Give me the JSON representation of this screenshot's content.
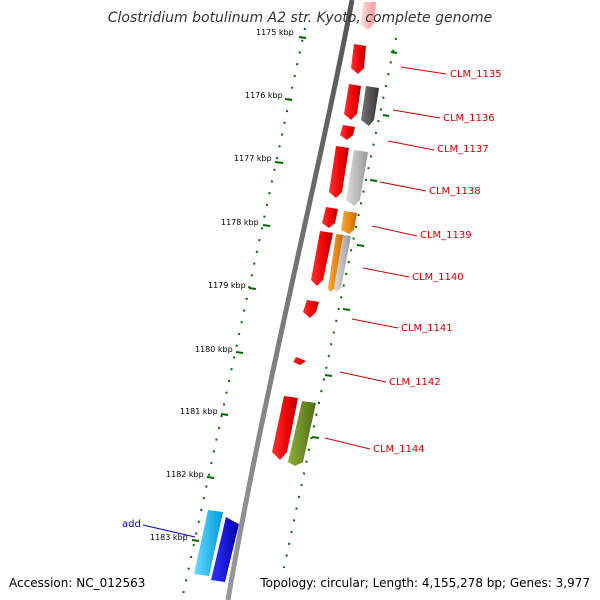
{
  "title": "Clostridium botulinum A2 str. Kyoto, complete genome",
  "accession": "Accession: NC_012563",
  "topology": "Topology: circular; Length: 4,155,278 bp; Genes: 3,977",
  "ruler": {
    "unit": "kbp",
    "ticks": [
      "1175 kbp",
      "1176 kbp",
      "1177 kbp",
      "1178 kbp",
      "1179 kbp",
      "1180 kbp",
      "1181 kbp",
      "1182 kbp",
      "1183 kbp"
    ]
  },
  "genes": [
    {
      "name": "",
      "strand": "forward",
      "color": "#ff0000"
    },
    {
      "name": "CLM_1135",
      "strand": "forward",
      "color": "#ff0000"
    },
    {
      "name": "CLM_1136",
      "strand": "forward",
      "color": "#ff0000",
      "homolog_color": "#555555"
    },
    {
      "name": "CLM_1137",
      "strand": "forward",
      "color": "#ff0000"
    },
    {
      "name": "CLM_1138",
      "strand": "forward",
      "color": "#ff0000",
      "homolog_color": "#bbbbbb"
    },
    {
      "name": "CLM_1139",
      "strand": "forward",
      "color": "#ff0000",
      "homolog_color": "#ff8800"
    },
    {
      "name": "CLM_1140",
      "strand": "forward",
      "color": "#ff0000",
      "homolog_color": "#ff8800"
    },
    {
      "name": "CLM_1141",
      "strand": "forward",
      "color": "#ff0000"
    },
    {
      "name": "CLM_1142",
      "strand": "forward",
      "color": "#ff0000"
    },
    {
      "name": "CLM_1144",
      "strand": "forward",
      "color": "#ff0000",
      "homolog_color": "#6b8e23"
    }
  ],
  "features": [
    {
      "name": "add",
      "color": "#00bfff",
      "homolog_color": "#0000ee"
    }
  ],
  "colors": {
    "backbone": "#777777",
    "ruler": "#006600",
    "gene_label": "#cc0000",
    "feature_label": "#0000cc"
  }
}
